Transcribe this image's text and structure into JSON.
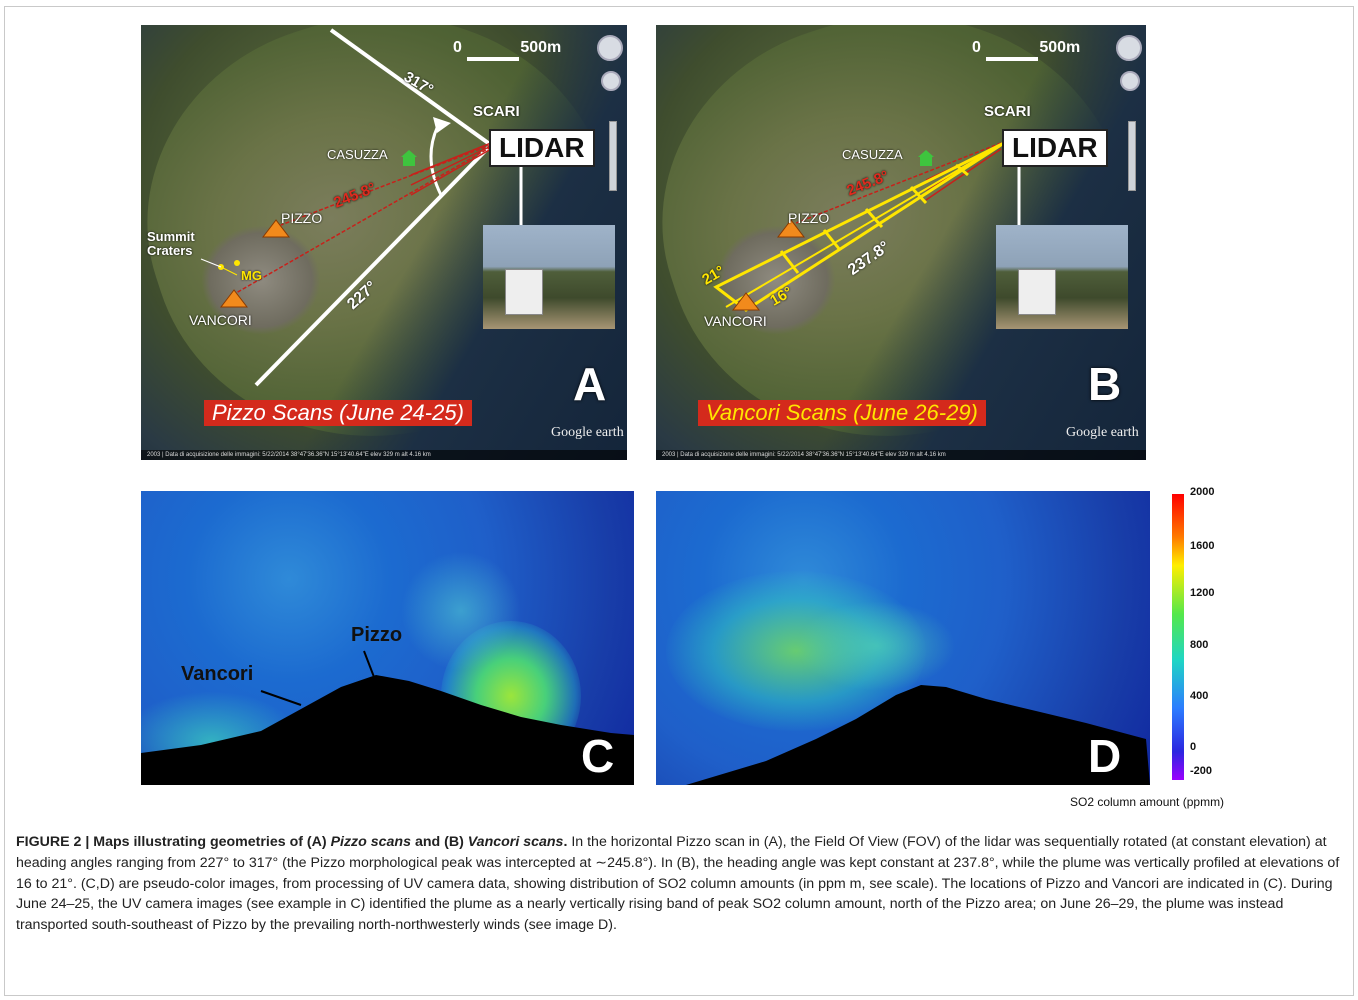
{
  "panel_a": {
    "scale_zero": "0",
    "scale_length": "500m",
    "angle_top": "317°",
    "angle_red": "245.8°",
    "angle_bottom": "227°",
    "scari": "SCARI",
    "casuzza": "CASUZZA",
    "lidar": "LIDAR",
    "pizzo": "PIZZO",
    "summit": "Summit",
    "craters": "Craters",
    "mg": "MG",
    "vancori": "VANCORI",
    "letter": "A",
    "caption": "Pizzo Scans (June 24-25)",
    "google_earth": "Google earth",
    "status": "2003 | Data di acquisizione delle immagini: 5/22/2014   38°47'36.36\"N  15°13'40.64\"E elev  329 m   alt  4.16 km"
  },
  "panel_b": {
    "scale_zero": "0",
    "scale_length": "500m",
    "angle_red": "245.8°",
    "angle_heading": "237.8°",
    "angle_21": "21°",
    "angle_16": "16°",
    "scari": "SCARI",
    "casuzza": "CASUZZA",
    "lidar": "LIDAR",
    "pizzo": "PIZZO",
    "vancori": "VANCORI",
    "letter": "B",
    "caption": "Vancori Scans (June 26-29)",
    "google_earth": "Google earth",
    "status": "2003 | Data di acquisizione delle immagini: 5/22/2014   38°47'36.36\"N  15°13'40.64\"E elev  329 m   alt  4.16 km"
  },
  "panel_c": {
    "pizzo": "Pizzo",
    "vancori": "Vancori",
    "letter": "C"
  },
  "panel_d": {
    "letter": "D"
  },
  "colorbar": {
    "ticks": [
      "2000",
      "1600",
      "1200",
      "800",
      "400",
      "0",
      "-200"
    ],
    "title": "SO2 column amount (ppmm)"
  },
  "caption": {
    "lead": "FIGURE 2 | Maps illustrating geometries of (A) ",
    "lead_i1": "Pizzo scans",
    "lead_mid": " and (B) ",
    "lead_i2": "Vancori scans",
    "lead_end": ".",
    "body": " In the horizontal Pizzo scan in (A), the Field Of View (FOV) of the lidar was sequentially rotated (at constant elevation) at heading angles ranging from 227° to 317° (the Pizzo morphological peak was intercepted at ∼245.8°). In (B), the heading angle was kept constant at 237.8°, while the plume was vertically profiled at elevations of 16 to 21°. (C,D) are pseudo-color images, from processing of UV camera data, showing distribution of SO2 column amounts (in ppm m, see scale). The locations of Pizzo and Vancori are indicated in (C). During June 24–25, the UV camera images (see example in C) identified the plume as a nearly vertically rising band of peak SO2 column amount, north of the Pizzo area; on June 26–29, the plume was instead transported south-southeast of Pizzo by the prevailing north-northwesterly winds (see image D)."
  }
}
